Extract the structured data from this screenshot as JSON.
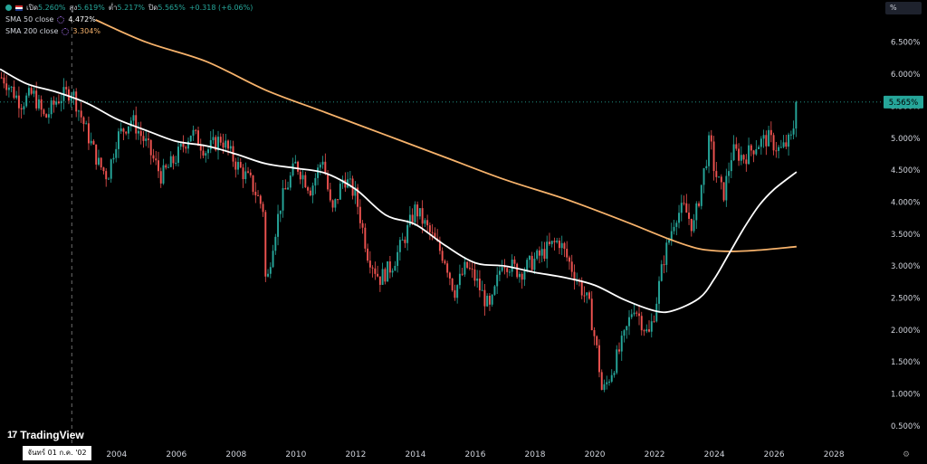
{
  "legend": {
    "ohlc": [
      {
        "label": "เปิด",
        "value": "5.260%"
      },
      {
        "label": "สูง",
        "value": "5.619%"
      },
      {
        "label": "ต่ำ",
        "value": "5.217%"
      },
      {
        "label": "ปิด",
        "value": "5.565%"
      },
      {
        "label": "",
        "value": "+0.318 (+6.06%)"
      }
    ],
    "indicators": [
      {
        "name": "SMA 50 close",
        "value": "4.472%",
        "color": "#ffffff"
      },
      {
        "name": "SMA 200 close",
        "value": "3.304%",
        "color": "#f6b26b"
      }
    ]
  },
  "unit_button": "%",
  "logo": {
    "text": "TradingView",
    "mark": "17"
  },
  "crosshair_date_label": "จันทร์ 01 ก.ค. '02",
  "price_label": "5.565%",
  "colors": {
    "up": "#26a69a",
    "down": "#ef5350",
    "sma50": "#ffffff",
    "sma200": "#f6b26b",
    "price_label": "#26a69a"
  },
  "chart_data": {
    "type": "candlestick",
    "y_ticks": [
      "6.500%",
      "6.000%",
      "5.500%",
      "5.000%",
      "4.500%",
      "4.000%",
      "3.500%",
      "3.000%",
      "2.500%",
      "2.000%",
      "1.500%",
      "1.000%",
      "0.500%"
    ],
    "y_tick_values": [
      6.5,
      6.0,
      5.5,
      5.0,
      4.5,
      4.0,
      3.5,
      3.0,
      2.5,
      2.0,
      1.5,
      1.0,
      0.5
    ],
    "x_ticks": [
      "2004",
      "2006",
      "2008",
      "2010",
      "2012",
      "2014",
      "2016",
      "2018",
      "2020",
      "2022",
      "2024",
      "2026",
      "2028"
    ],
    "x_tick_values": [
      2004,
      2006,
      2008,
      2010,
      2012,
      2014,
      2016,
      2018,
      2020,
      2022,
      2024,
      2026,
      2028
    ],
    "x_range": [
      2000.1,
      2029.6
    ],
    "y_range": [
      0.3,
      6.85
    ],
    "last_close": 5.565,
    "crosshair_x": 2002.5,
    "price_anchors": [
      [
        2000.2,
        5.95
      ],
      [
        2000.8,
        5.55
      ],
      [
        2001.2,
        5.7
      ],
      [
        2001.6,
        5.3
      ],
      [
        2002.0,
        5.6
      ],
      [
        2002.5,
        5.75
      ],
      [
        2003.0,
        5.1
      ],
      [
        2003.4,
        4.6
      ],
      [
        2003.7,
        4.4
      ],
      [
        2004.0,
        5.0
      ],
      [
        2004.5,
        5.3
      ],
      [
        2005.0,
        4.9
      ],
      [
        2005.5,
        4.4
      ],
      [
        2006.0,
        4.7
      ],
      [
        2006.5,
        5.1
      ],
      [
        2007.0,
        4.8
      ],
      [
        2007.5,
        5.0
      ],
      [
        2008.0,
        4.6
      ],
      [
        2008.5,
        4.3
      ],
      [
        2008.9,
        3.9
      ],
      [
        2009.0,
        2.6
      ],
      [
        2009.2,
        3.3
      ],
      [
        2009.5,
        4.0
      ],
      [
        2010.0,
        4.6
      ],
      [
        2010.5,
        4.2
      ],
      [
        2010.9,
        4.7
      ],
      [
        2011.2,
        3.8
      ],
      [
        2011.6,
        4.4
      ],
      [
        2012.0,
        4.1
      ],
      [
        2012.4,
        3.2
      ],
      [
        2012.8,
        2.8
      ],
      [
        2013.2,
        3.0
      ],
      [
        2013.6,
        3.4
      ],
      [
        2014.0,
        3.9
      ],
      [
        2014.5,
        3.5
      ],
      [
        2015.0,
        3.1
      ],
      [
        2015.3,
        2.6
      ],
      [
        2015.7,
        3.0
      ],
      [
        2016.0,
        2.8
      ],
      [
        2016.5,
        2.3
      ],
      [
        2016.9,
        3.1
      ],
      [
        2017.5,
        2.9
      ],
      [
        2018.0,
        3.1
      ],
      [
        2018.5,
        3.3
      ],
      [
        2018.8,
        3.4
      ],
      [
        2019.3,
        2.9
      ],
      [
        2019.8,
        2.4
      ],
      [
        2020.1,
        1.6
      ],
      [
        2020.25,
        1.0
      ],
      [
        2020.6,
        1.4
      ],
      [
        2021.0,
        1.9
      ],
      [
        2021.3,
        2.4
      ],
      [
        2021.8,
        1.9
      ],
      [
        2022.0,
        2.3
      ],
      [
        2022.3,
        3.1
      ],
      [
        2022.7,
        3.8
      ],
      [
        2023.0,
        3.9
      ],
      [
        2023.3,
        3.6
      ],
      [
        2023.7,
        4.6
      ],
      [
        2023.85,
        5.0
      ],
      [
        2024.0,
        4.5
      ],
      [
        2024.3,
        4.1
      ],
      [
        2024.6,
        4.8
      ],
      [
        2025.0,
        4.7
      ],
      [
        2025.4,
        4.9
      ],
      [
        2025.8,
        5.0
      ],
      [
        2026.2,
        4.8
      ],
      [
        2026.6,
        5.0
      ],
      [
        2026.75,
        5.565
      ]
    ],
    "sma50_points": [
      [
        2000.1,
        6.08
      ],
      [
        2001.0,
        5.85
      ],
      [
        2002.0,
        5.72
      ],
      [
        2003.0,
        5.55
      ],
      [
        2004.0,
        5.3
      ],
      [
        2005.0,
        5.12
      ],
      [
        2006.0,
        4.95
      ],
      [
        2007.0,
        4.88
      ],
      [
        2008.0,
        4.75
      ],
      [
        2009.0,
        4.6
      ],
      [
        2010.0,
        4.53
      ],
      [
        2011.0,
        4.45
      ],
      [
        2012.0,
        4.2
      ],
      [
        2013.0,
        3.8
      ],
      [
        2014.0,
        3.65
      ],
      [
        2015.0,
        3.32
      ],
      [
        2016.0,
        3.05
      ],
      [
        2017.0,
        3.0
      ],
      [
        2018.0,
        2.9
      ],
      [
        2019.0,
        2.82
      ],
      [
        2020.0,
        2.7
      ],
      [
        2021.0,
        2.47
      ],
      [
        2022.0,
        2.3
      ],
      [
        2022.6,
        2.3
      ],
      [
        2023.5,
        2.5
      ],
      [
        2024.0,
        2.8
      ],
      [
        2024.5,
        3.2
      ],
      [
        2025.0,
        3.6
      ],
      [
        2025.5,
        3.95
      ],
      [
        2026.0,
        4.2
      ],
      [
        2026.75,
        4.472
      ]
    ],
    "sma200_points": [
      [
        2003.3,
        6.85
      ],
      [
        2005.0,
        6.5
      ],
      [
        2007.0,
        6.2
      ],
      [
        2009.0,
        5.75
      ],
      [
        2011.0,
        5.4
      ],
      [
        2013.0,
        5.05
      ],
      [
        2015.0,
        4.7
      ],
      [
        2017.0,
        4.35
      ],
      [
        2019.0,
        4.05
      ],
      [
        2021.0,
        3.7
      ],
      [
        2022.5,
        3.42
      ],
      [
        2023.5,
        3.27
      ],
      [
        2024.5,
        3.23
      ],
      [
        2025.5,
        3.25
      ],
      [
        2026.75,
        3.304
      ]
    ]
  }
}
